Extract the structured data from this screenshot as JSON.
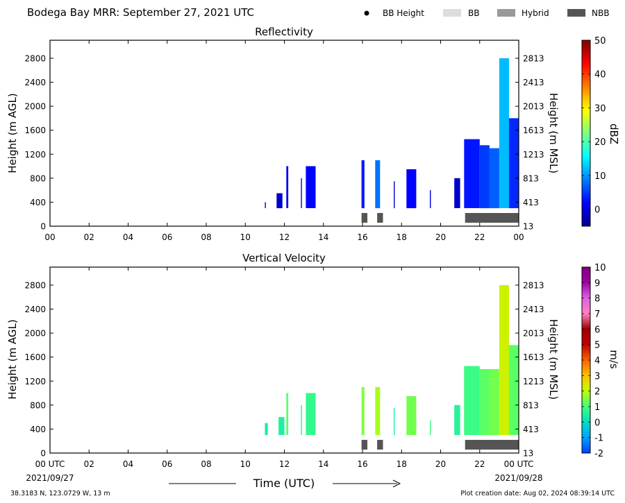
{
  "header": {
    "title": "Bodega Bay MRR:  September 27, 2021 UTC",
    "legend": [
      {
        "label": "BB Height",
        "marker": "dot",
        "color": "#000000"
      },
      {
        "label": "BB",
        "marker": "rect",
        "color": "#dddddd"
      },
      {
        "label": "Hybrid",
        "marker": "rect",
        "color": "#999999"
      },
      {
        "label": "NBB",
        "marker": "rect",
        "color": "#555555"
      }
    ]
  },
  "chart_data": [
    {
      "type": "heatmap",
      "title": "Reflectivity",
      "ylabel": "Height (m AGL)",
      "ylabel_right": "Height (m MSL)",
      "xlim": [
        0,
        24
      ],
      "ylim": [
        0,
        3100
      ],
      "x_ticks": [
        "00",
        "02",
        "04",
        "06",
        "08",
        "10",
        "12",
        "14",
        "16",
        "18",
        "20",
        "22",
        "00"
      ],
      "y_ticks": [
        0,
        400,
        800,
        1200,
        1600,
        2000,
        2400,
        2800
      ],
      "y_ticks_right": [
        "13",
        "413",
        "813",
        "1213",
        "1613",
        "2013",
        "2413",
        "2813"
      ],
      "colorbar": {
        "label": "dBZ",
        "range": [
          -5,
          50
        ],
        "ticks": [
          "0",
          "10",
          "20",
          "30",
          "40",
          "50"
        ],
        "tick_values": [
          0,
          10,
          20,
          30,
          40,
          50
        ],
        "colormap": [
          "#00008b",
          "#0000ff",
          "#0080ff",
          "#00ffff",
          "#80ff80",
          "#ffff00",
          "#ff8000",
          "#ff0000",
          "#800000"
        ]
      },
      "echo_columns": [
        {
          "start": 11.0,
          "end": 11.05,
          "base": 300,
          "top": 400,
          "value": -2
        },
        {
          "start": 11.6,
          "end": 11.9,
          "base": 300,
          "top": 550,
          "value": -1
        },
        {
          "start": 12.1,
          "end": 12.2,
          "base": 300,
          "top": 1000,
          "value": 1
        },
        {
          "start": 12.85,
          "end": 12.9,
          "base": 300,
          "top": 800,
          "value": -1
        },
        {
          "start": 13.1,
          "end": 13.6,
          "base": 300,
          "top": 1000,
          "value": 2
        },
        {
          "start": 15.95,
          "end": 16.1,
          "base": 300,
          "top": 1100,
          "value": 3
        },
        {
          "start": 16.65,
          "end": 16.9,
          "base": 300,
          "top": 1100,
          "value": 8
        },
        {
          "start": 17.6,
          "end": 17.65,
          "base": 300,
          "top": 750,
          "value": -1
        },
        {
          "start": 18.25,
          "end": 18.75,
          "base": 300,
          "top": 950,
          "value": 2
        },
        {
          "start": 19.45,
          "end": 19.5,
          "base": 300,
          "top": 600,
          "value": 0
        },
        {
          "start": 20.7,
          "end": 21.0,
          "base": 300,
          "top": 800,
          "value": -1
        },
        {
          "start": 21.2,
          "end": 22.0,
          "base": 300,
          "top": 1450,
          "value": 3
        },
        {
          "start": 22.0,
          "end": 22.5,
          "base": 300,
          "top": 1350,
          "value": 5
        },
        {
          "start": 22.5,
          "end": 23.0,
          "base": 300,
          "top": 1300,
          "value": 7
        },
        {
          "start": 23.0,
          "end": 23.5,
          "base": 300,
          "top": 2800,
          "value": 12
        },
        {
          "start": 23.5,
          "end": 24.0,
          "base": 300,
          "top": 1800,
          "value": 4
        }
      ],
      "bright_band_periods": [
        {
          "start": 15.95,
          "end": 16.25,
          "class": "NBB"
        },
        {
          "start": 16.75,
          "end": 17.05,
          "class": "NBB"
        },
        {
          "start": 21.25,
          "end": 24.0,
          "class": "NBB"
        }
      ]
    },
    {
      "type": "heatmap",
      "title": "Vertical Velocity",
      "ylabel": "Height (m AGL)",
      "ylabel_right": "Height (m MSL)",
      "xlabel": "Time (UTC)",
      "xlim": [
        0,
        24
      ],
      "ylim": [
        0,
        3100
      ],
      "x_ticks": [
        "00 UTC",
        "02",
        "04",
        "06",
        "08",
        "10",
        "12",
        "14",
        "16",
        "18",
        "20",
        "22",
        "00 UTC"
      ],
      "x_date_labels": [
        "2021/09/27",
        "2021/09/28"
      ],
      "y_ticks": [
        0,
        400,
        800,
        1200,
        1600,
        2000,
        2400,
        2800
      ],
      "y_ticks_right": [
        "13",
        "413",
        "813",
        "1213",
        "1613",
        "2013",
        "2413",
        "2813"
      ],
      "colorbar": {
        "label": "m/s",
        "range": [
          -2,
          10
        ],
        "ticks": [
          "-2",
          "-1",
          "0",
          "1",
          "2",
          "3",
          "4",
          "5",
          "6",
          "7",
          "8",
          "9",
          "10"
        ],
        "tick_values": [
          -2,
          -1,
          0,
          1,
          2,
          3,
          4,
          5,
          6,
          7,
          8,
          9,
          10
        ],
        "colormap": [
          "#0040ff",
          "#00a0ff",
          "#00e0c0",
          "#40ff80",
          "#c0ff00",
          "#ffc000",
          "#ff6000",
          "#c00000",
          "#a00000",
          "#ff80c0",
          "#e060e0",
          "#a000a0",
          "#800080"
        ]
      },
      "echo_columns": [
        {
          "start": 11.0,
          "end": 11.15,
          "base": 300,
          "top": 500,
          "value": 0.4
        },
        {
          "start": 11.7,
          "end": 12.0,
          "base": 300,
          "top": 600,
          "value": 0.5
        },
        {
          "start": 12.1,
          "end": 12.2,
          "base": 300,
          "top": 1000,
          "value": 1.2
        },
        {
          "start": 12.85,
          "end": 12.9,
          "base": 300,
          "top": 800,
          "value": 0.5
        },
        {
          "start": 13.1,
          "end": 13.6,
          "base": 300,
          "top": 1000,
          "value": 0.8
        },
        {
          "start": 15.95,
          "end": 16.1,
          "base": 300,
          "top": 1100,
          "value": 1.5
        },
        {
          "start": 16.65,
          "end": 16.9,
          "base": 300,
          "top": 1100,
          "value": 1.8
        },
        {
          "start": 17.6,
          "end": 17.65,
          "base": 300,
          "top": 750,
          "value": 0.5
        },
        {
          "start": 18.25,
          "end": 18.75,
          "base": 300,
          "top": 950,
          "value": 1.4
        },
        {
          "start": 19.45,
          "end": 19.5,
          "base": 300,
          "top": 550,
          "value": 1.0
        },
        {
          "start": 20.7,
          "end": 21.0,
          "base": 300,
          "top": 800,
          "value": 0.6
        },
        {
          "start": 21.2,
          "end": 22.0,
          "base": 300,
          "top": 1450,
          "value": 0.9
        },
        {
          "start": 22.0,
          "end": 22.5,
          "base": 300,
          "top": 1400,
          "value": 1.2
        },
        {
          "start": 22.5,
          "end": 23.0,
          "base": 300,
          "top": 1400,
          "value": 1.4
        },
        {
          "start": 23.0,
          "end": 23.5,
          "base": 300,
          "top": 2800,
          "value": 2.2
        },
        {
          "start": 23.5,
          "end": 24.0,
          "base": 300,
          "top": 1800,
          "value": 1.2
        }
      ],
      "bright_band_periods": [
        {
          "start": 15.95,
          "end": 16.25,
          "class": "NBB"
        },
        {
          "start": 16.75,
          "end": 17.05,
          "class": "NBB"
        },
        {
          "start": 21.25,
          "end": 24.0,
          "class": "NBB"
        }
      ]
    }
  ],
  "footer": {
    "location": "38.3183 N, 123.0729 W, 13 m",
    "creation": "Plot creation date: Aug 02, 2024 08:39:14 UTC"
  }
}
